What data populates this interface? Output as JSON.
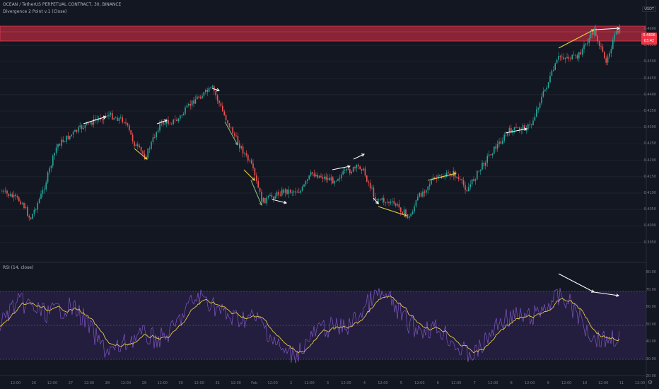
{
  "header": {
    "symbol_line": "OCEAN / TetherUS PERPETUAL CONTRACT, 30, BINANCE",
    "indicator_line": "Divergence 2 Point v.1 (Close)"
  },
  "currency_label": "USDT",
  "price_axis": [
    "0.4600",
    "0.4550",
    "0.4500",
    "0.4450",
    "0.4400",
    "0.4350",
    "0.4300",
    "0.4250",
    "0.4200",
    "0.4150",
    "0.4100",
    "0.4050",
    "0.4000",
    "0.3950"
  ],
  "price_tags": [
    "0.4606",
    "03:42"
  ],
  "rsi": {
    "label": "RSI (14, close)",
    "axis": [
      "80.00",
      "70.00",
      "60.00",
      "50.00",
      "40.00",
      "30.00",
      "20.00"
    ]
  },
  "time_axis": [
    "12:00",
    "26",
    "12:00",
    "27",
    "12:00",
    "28",
    "12:00",
    "29",
    "12:00",
    "30",
    "12:00",
    "31",
    "12:00",
    "Feb",
    "12:00",
    "2",
    "12:00",
    "3",
    "12:00",
    "4",
    "12:00",
    "5",
    "12:00",
    "6",
    "12:00",
    "7",
    "12:00",
    "8",
    "12:00",
    "9",
    "12:00",
    "10",
    "12:00",
    "11",
    "12:00"
  ],
  "colors": {
    "background": "#131722",
    "up": "#26a69a",
    "down": "#ef5350",
    "zone": "#b2283d",
    "white_divergence": "#ffffff",
    "yellow_divergence": "#e6d24a",
    "rsi_line": "#7e57c2",
    "rsi_signal": "#e6c84a",
    "rsi_band": "#2a2048"
  },
  "icons": {
    "settings": "gear-icon"
  }
}
